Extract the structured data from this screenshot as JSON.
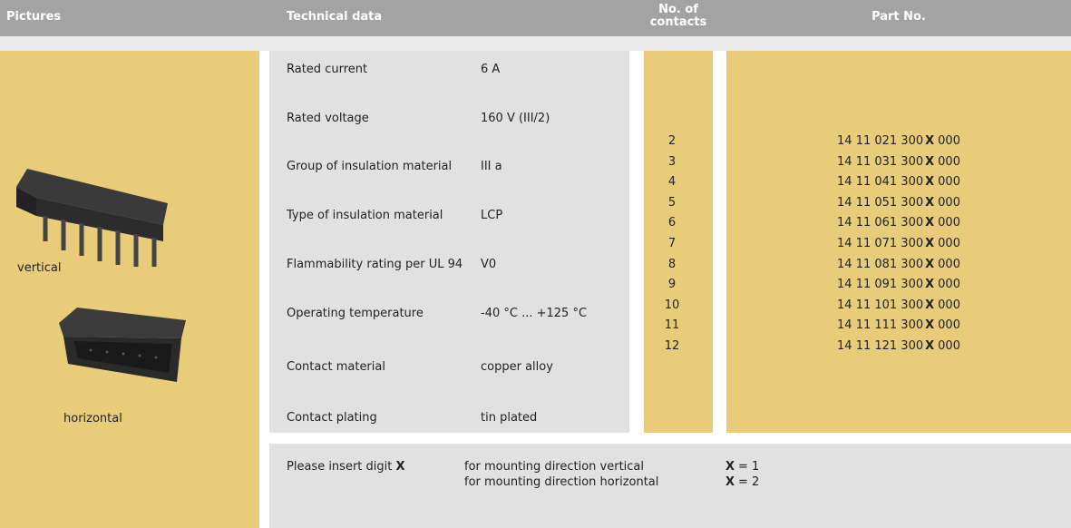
{
  "header": {
    "pictures": "Pictures",
    "technical_data": "Technical data",
    "contacts": "No. of contacts",
    "part_no": "Part No."
  },
  "pictures": {
    "vertical": "vertical",
    "horizontal": "horizontal"
  },
  "technical_data": {
    "rows": [
      [
        "Rated current",
        "6 A"
      ],
      [
        "Rated voltage",
        "160 V (III/2)"
      ],
      [
        "Group of insulation material",
        "III a"
      ],
      [
        "Type of insulation material",
        "LCP"
      ],
      [
        "Flammability rating per UL 94",
        "V0"
      ],
      [
        "Operating temperature",
        "-40 °C ... +125 °C"
      ],
      [
        "Contact material",
        "copper alloy"
      ],
      [
        "Contact plating",
        "tin plated"
      ]
    ]
  },
  "contacts": [
    2,
    3,
    4,
    5,
    6,
    7,
    8,
    9,
    10,
    11,
    12
  ],
  "part_numbers": [
    {
      "prefix": "14 11 021 300",
      "digit": "X",
      "suffix": "000"
    },
    {
      "prefix": "14 11 031 300",
      "digit": "X",
      "suffix": "000"
    },
    {
      "prefix": "14 11 041 300",
      "digit": "X",
      "suffix": "000"
    },
    {
      "prefix": "14 11 051 300",
      "digit": "X",
      "suffix": "000"
    },
    {
      "prefix": "14 11 061 300",
      "digit": "X",
      "suffix": "000"
    },
    {
      "prefix": "14 11 071 300",
      "digit": "X",
      "suffix": "000"
    },
    {
      "prefix": "14 11 081 300",
      "digit": "X",
      "suffix": "000"
    },
    {
      "prefix": "14 11 091 300",
      "digit": "X",
      "suffix": "000"
    },
    {
      "prefix": "14 11 101 300",
      "digit": "X",
      "suffix": "000"
    },
    {
      "prefix": "14 11 111 300",
      "digit": "X",
      "suffix": "000"
    },
    {
      "prefix": "14 11 121 300",
      "digit": "X",
      "suffix": "000"
    }
  ],
  "note": {
    "label": "Please insert digit",
    "digit": "X",
    "options": [
      {
        "text": "for mounting direction vertical",
        "digit": "X",
        "value": "= 1"
      },
      {
        "text": "for mounting direction horizontal",
        "digit": "X",
        "value": "= 2"
      }
    ]
  }
}
